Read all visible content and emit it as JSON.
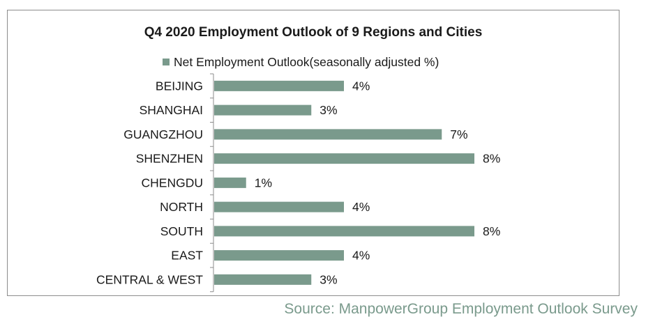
{
  "chart_data": {
    "type": "bar",
    "orientation": "horizontal",
    "title": "Q4 2020 Employment Outlook of 9 Regions and Cities",
    "categories": [
      "BEIJING",
      "SHANGHAI",
      "GUANGZHOU",
      "SHENZHEN",
      "CHENGDU",
      "NORTH",
      "SOUTH",
      "EAST",
      "CENTRAL & WEST"
    ],
    "series": [
      {
        "name": "Net Employment Outlook(seasonally adjusted %)",
        "values": [
          4,
          3,
          7,
          8,
          1,
          4,
          8,
          4,
          3
        ],
        "labels": [
          "4%",
          "3%",
          "7%",
          "8%",
          "1%",
          "4%",
          "8%",
          "4%",
          "3%"
        ]
      }
    ],
    "xlim": [
      0,
      8
    ],
    "grid": false,
    "legend": "top",
    "colors": {
      "bar": "#7a9a8c",
      "text": "#1a1a1a",
      "axis": "#8c8c8c"
    }
  },
  "source": "Source: ManpowerGroup Employment Outlook Survey"
}
